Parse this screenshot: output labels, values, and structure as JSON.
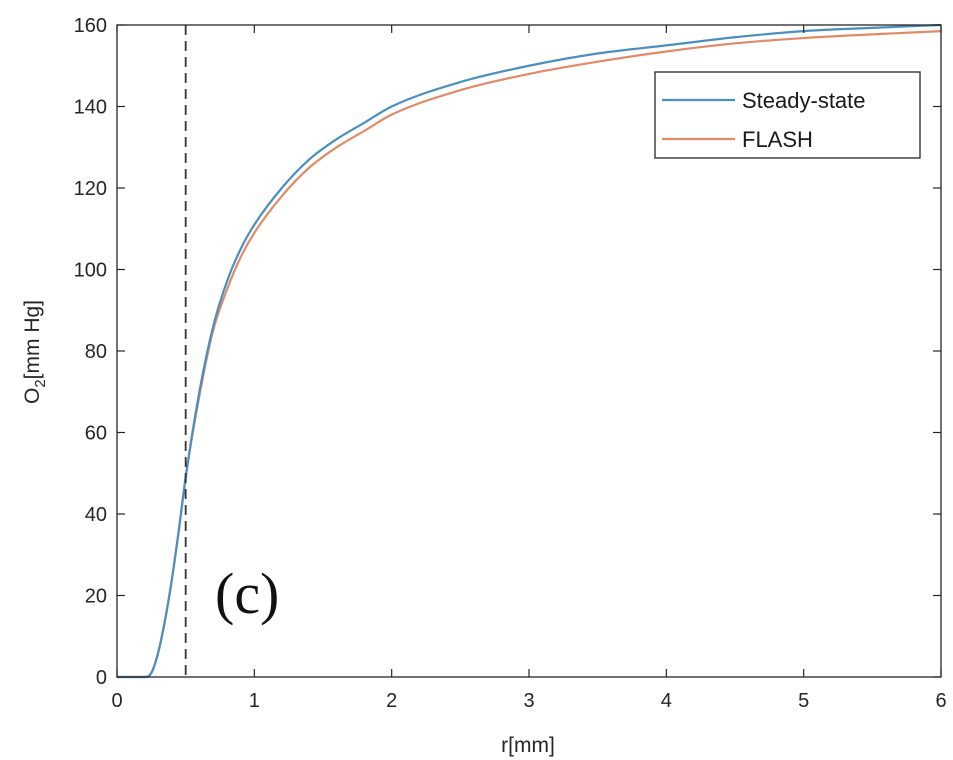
{
  "chart_data": {
    "type": "line",
    "xlabel": "r[mm]",
    "ylabel_main": "O",
    "ylabel_sub": "2",
    "ylabel_rest": "[mm Hg]",
    "panel_label": "(c)",
    "xlim": [
      0,
      6
    ],
    "ylim": [
      0,
      160
    ],
    "xticks": [
      0,
      1,
      2,
      3,
      4,
      5,
      6
    ],
    "yticks": [
      0,
      20,
      40,
      60,
      80,
      100,
      120,
      140,
      160
    ],
    "grid": false,
    "legend_position": "top-right",
    "vline_x": 0.5,
    "x": [
      0,
      0.2,
      0.25,
      0.3,
      0.35,
      0.4,
      0.45,
      0.5,
      0.6,
      0.7,
      0.8,
      0.9,
      1.0,
      1.2,
      1.4,
      1.6,
      1.8,
      2.0,
      2.5,
      3.0,
      3.5,
      4.0,
      4.5,
      5.0,
      5.5,
      6.0
    ],
    "series": [
      {
        "name": "Steady-state",
        "color": "#4a8fbf",
        "values": [
          0,
          0,
          1,
          6,
          14,
          24,
          36,
          49,
          70,
          86,
          97,
          105,
          111,
          120,
          127,
          132,
          136,
          140,
          146,
          150,
          153,
          155,
          157,
          158.5,
          159.3,
          160
        ]
      },
      {
        "name": "FLASH",
        "color": "#e08a68",
        "values": [
          0,
          0,
          1,
          6,
          14,
          24,
          36,
          49,
          69,
          85,
          95,
          103,
          109,
          118,
          125,
          130,
          134,
          138,
          144,
          148,
          151,
          153.5,
          155.5,
          156.8,
          157.7,
          158.5
        ]
      }
    ]
  }
}
